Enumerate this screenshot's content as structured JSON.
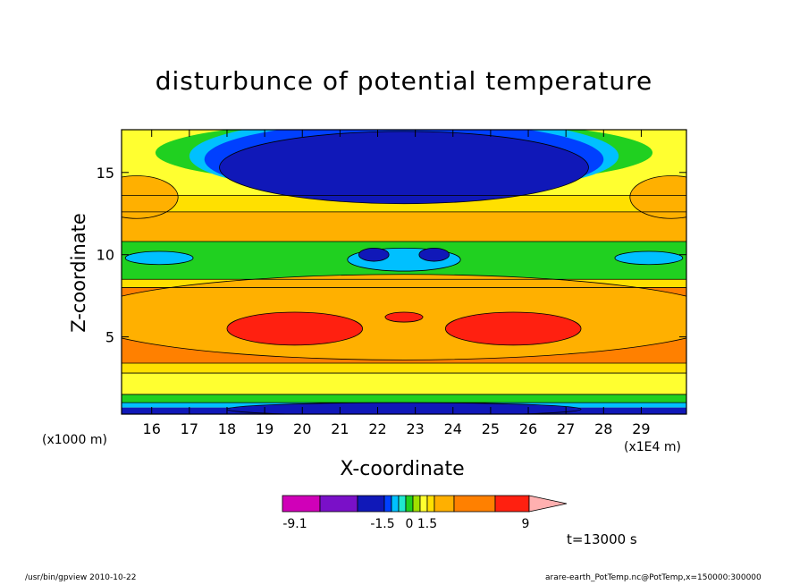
{
  "chart_data": {
    "type": "heatmap",
    "title": "disturbunce of potential temperature",
    "xlabel": "X-coordinate",
    "ylabel": "Z-coordinate",
    "xunit_left": "(x1000 m)",
    "xunit_right": "(x1E4 m)",
    "xlim": [
      15.2,
      30.2
    ],
    "ylim": [
      0.3,
      17.6
    ],
    "xticks": [
      16,
      17,
      18,
      19,
      20,
      21,
      22,
      23,
      24,
      25,
      26,
      27,
      28,
      29
    ],
    "yticks": [
      5,
      10,
      15
    ],
    "colorbar": {
      "tick_labels": [
        "-9.1",
        "-1.5",
        "0",
        "1.5",
        "9"
      ],
      "tick_values": [
        -9.1,
        -1.5,
        0,
        1.5,
        9
      ],
      "colors": [
        "#d000b8",
        "#7a10c8",
        "#1018b8",
        "#0040ff",
        "#00c0ff",
        "#20e8d0",
        "#20d020",
        "#a0e000",
        "#ffff30",
        "#ffe000",
        "#ffb000",
        "#ff8000",
        "#ff2010",
        "#ff7070",
        "#ffb0b0"
      ]
    },
    "regions": [
      {
        "level": 0.8,
        "color": "#ffb000",
        "cx": 22.7,
        "cy": 6.2,
        "rx": 8.6,
        "ry": 2.6
      },
      {
        "level": 1.2,
        "color": "#ff2010",
        "cx": 19.8,
        "cy": 5.5,
        "rx": 1.8,
        "ry": 1.0
      },
      {
        "level": 1.2,
        "color": "#ff2010",
        "cx": 25.6,
        "cy": 5.5,
        "rx": 1.8,
        "ry": 1.0
      },
      {
        "level": 1.2,
        "color": "#ff2010",
        "cx": 22.7,
        "cy": 6.2,
        "rx": 0.5,
        "ry": 0.3
      },
      {
        "level": 0.8,
        "color": "#ffb000",
        "cx": 15.6,
        "cy": 13.5,
        "rx": 1.1,
        "ry": 1.3
      },
      {
        "level": 0.8,
        "color": "#ffb000",
        "cx": 29.8,
        "cy": 13.5,
        "rx": 1.1,
        "ry": 1.3
      },
      {
        "level": -1.5,
        "color": "#1018b8",
        "cx": 22.7,
        "cy": 15.3,
        "rx": 4.9,
        "ry": 2.2
      },
      {
        "level": -0.5,
        "color": "#00c0ff",
        "cx": 16.2,
        "cy": 9.8,
        "rx": 0.9,
        "ry": 0.4
      },
      {
        "level": -0.5,
        "color": "#00c0ff",
        "cx": 29.2,
        "cy": 9.8,
        "rx": 0.9,
        "ry": 0.4
      },
      {
        "level": -0.5,
        "color": "#00c0ff",
        "cx": 22.7,
        "cy": 9.7,
        "rx": 1.5,
        "ry": 0.7
      },
      {
        "level": -1.5,
        "color": "#1018b8",
        "cx": 21.9,
        "cy": 10.0,
        "rx": 0.4,
        "ry": 0.4
      },
      {
        "level": -1.5,
        "color": "#1018b8",
        "cx": 23.5,
        "cy": 10.0,
        "rx": 0.4,
        "ry": 0.4
      },
      {
        "level": -1.5,
        "color": "#1018b8",
        "cx": 22.7,
        "cy": 0.6,
        "rx": 4.7,
        "ry": 0.4
      }
    ]
  },
  "time_label": "t=13000 s",
  "footer_left": "/usr/bin/gpview 2010-10-22",
  "footer_right": "arare-earth_PotTemp.nc@PotTemp,x=150000:300000"
}
